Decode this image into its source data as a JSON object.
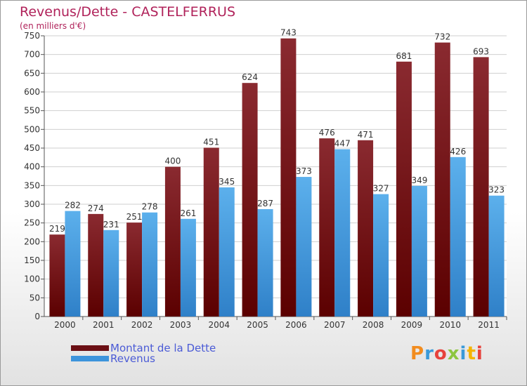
{
  "title": "Revenus/Dette - CASTELFERRUS",
  "subtitle": "(en milliers d'€)",
  "legend": {
    "debt": "Montant de la Dette",
    "revenue": "Revenus"
  },
  "logo": {
    "text": "Proxiti",
    "colors": [
      "#f28c1e",
      "#3a9ad9",
      "#e7423c",
      "#8dc63f",
      "#3a9ad9",
      "#f5b400",
      "#e7423c"
    ]
  },
  "colors": {
    "debt": "#7a1a1f",
    "debt_dark": "#5b0000",
    "revenue": "#3d94dc",
    "revenue_light": "#5cb0ec",
    "axis": "#555555",
    "grid": "#cfcfcf"
  },
  "chart_data": {
    "type": "bar",
    "title": "Revenus/Dette - CASTELFERRUS",
    "ylabel": "(en milliers d'€)",
    "xlabel": "",
    "ylim": [
      0,
      750
    ],
    "yticks": [
      0,
      50,
      100,
      150,
      200,
      250,
      300,
      350,
      400,
      450,
      500,
      550,
      600,
      650,
      700,
      750
    ],
    "categories": [
      "2000",
      "2001",
      "2002",
      "2003",
      "2004",
      "2005",
      "2006",
      "2007",
      "2008",
      "2009",
      "2010",
      "2011"
    ],
    "series": [
      {
        "name": "Montant de la Dette",
        "values": [
          219,
          274,
          251,
          400,
          451,
          624,
          743,
          476,
          471,
          681,
          732,
          693
        ]
      },
      {
        "name": "Revenus",
        "values": [
          282,
          231,
          278,
          261,
          345,
          287,
          373,
          447,
          327,
          349,
          426,
          323
        ]
      }
    ],
    "legend_position": "bottom-left",
    "grid": true
  }
}
